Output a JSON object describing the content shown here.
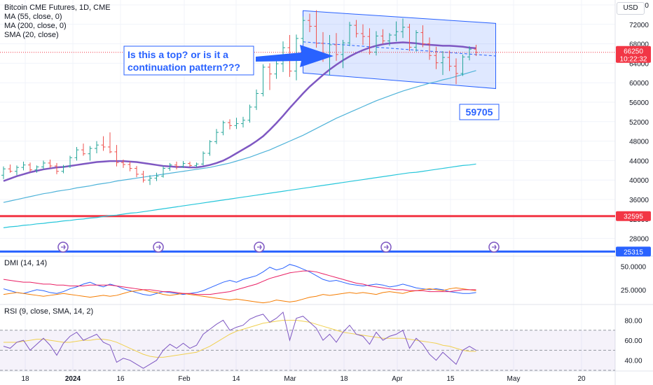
{
  "header": {
    "title": "Bitcoin CME Futures, 1D, CME",
    "currency": "USD",
    "indicators": [
      "MA (55, close, 0)",
      "MA (200, close, 0)",
      "SMA (20, close)"
    ]
  },
  "panes": {
    "dmi_label": "DMI (14, 14)",
    "rsi_label": "RSI (9, close, SMA, 14, 2)"
  },
  "annotations": {
    "callout": [
      "Is this a top? or is it a",
      "continuation pattern???"
    ],
    "low_box": "59705"
  },
  "price_badges": {
    "last": "66250",
    "countdown": "10:22:32",
    "level_red": "32595",
    "level_blue": "25315"
  },
  "chart_data": [
    {
      "type": "line",
      "title": "Bitcoin CME Futures, 1D, CME",
      "x_ticks": [
        "18",
        "2024",
        "16",
        "Feb",
        "14",
        "Mar",
        "18",
        "Apr",
        "15",
        "May",
        "20"
      ],
      "y_ticks": [
        76000,
        72000,
        68000,
        64000,
        60000,
        56000,
        52000,
        48000,
        44000,
        40000,
        36000,
        32000,
        28000
      ],
      "ylim": [
        24500,
        77000
      ],
      "horizontal_levels": [
        {
          "value": 32595,
          "color": "#f23645"
        },
        {
          "value": 25315,
          "color": "#2962ff"
        }
      ],
      "last_price": 66250,
      "annotated_low": 59705,
      "candles": [
        [
          41000,
          42800,
          40200,
          42300
        ],
        [
          42300,
          43200,
          41500,
          41800
        ],
        [
          41800,
          43000,
          41000,
          42600
        ],
        [
          42600,
          43800,
          42000,
          43100
        ],
        [
          43100,
          43600,
          41700,
          42100
        ],
        [
          42100,
          43000,
          41500,
          42700
        ],
        [
          42700,
          44000,
          42200,
          43500
        ],
        [
          43500,
          44200,
          42500,
          42900
        ],
        [
          42900,
          43500,
          41200,
          41800
        ],
        [
          41800,
          43100,
          41400,
          42800
        ],
        [
          42800,
          45000,
          42500,
          44600
        ],
        [
          44600,
          46800,
          44000,
          46200
        ],
        [
          46200,
          47500,
          45000,
          45400
        ],
        [
          45400,
          47000,
          44000,
          46500
        ],
        [
          46500,
          48000,
          45500,
          47200
        ],
        [
          47200,
          49000,
          46000,
          46800
        ],
        [
          46800,
          49800,
          45500,
          45800
        ],
        [
          45800,
          47200,
          42800,
          43600
        ],
        [
          43600,
          44200,
          42500,
          43200
        ],
        [
          43200,
          43800,
          41800,
          42400
        ],
        [
          42400,
          42900,
          40600,
          41200
        ],
        [
          41200,
          41900,
          39500,
          40000
        ],
        [
          40000,
          41000,
          39000,
          40400
        ],
        [
          40400,
          41500,
          39800,
          40800
        ],
        [
          40800,
          42900,
          40500,
          42400
        ],
        [
          42400,
          43500,
          41900,
          43100
        ],
        [
          43100,
          43800,
          42200,
          42800
        ],
        [
          42800,
          43900,
          42500,
          43400
        ],
        [
          43400,
          43800,
          42700,
          43000
        ],
        [
          43000,
          43600,
          42600,
          43300
        ],
        [
          43300,
          45900,
          43000,
          45500
        ],
        [
          45500,
          48200,
          45000,
          47900
        ],
        [
          47900,
          50500,
          47400,
          49800
        ],
        [
          49800,
          52200,
          49200,
          51800
        ],
        [
          51800,
          52500,
          50400,
          51200
        ],
        [
          51200,
          52800,
          50500,
          51600
        ],
        [
          51600,
          53000,
          50800,
          52300
        ],
        [
          52300,
          55500,
          51800,
          55000
        ],
        [
          55000,
          58600,
          54400,
          57800
        ],
        [
          57800,
          63800,
          57200,
          63200
        ],
        [
          63200,
          64000,
          58500,
          61800
        ],
        [
          61800,
          64500,
          60800,
          63900
        ],
        [
          63900,
          68500,
          62200,
          67200
        ],
        [
          67200,
          69800,
          61200,
          62400
        ],
        [
          62400,
          69900,
          60500,
          69100
        ],
        [
          69100,
          73600,
          68000,
          72800
        ],
        [
          72800,
          74200,
          70400,
          71600
        ],
        [
          71600,
          74900,
          67200,
          68100
        ],
        [
          68100,
          70400,
          64300,
          65400
        ],
        [
          65400,
          69800,
          61500,
          67800
        ],
        [
          67800,
          70200,
          64500,
          65800
        ],
        [
          65800,
          68800,
          63000,
          68200
        ],
        [
          68200,
          72500,
          67500,
          71800
        ],
        [
          71800,
          72900,
          69300,
          70100
        ],
        [
          70100,
          72000,
          67800,
          69500
        ],
        [
          69500,
          71200,
          65800,
          66300
        ],
        [
          66300,
          70600,
          65600,
          69600
        ],
        [
          69600,
          71000,
          68000,
          68600
        ],
        [
          68600,
          70200,
          67600,
          69800
        ],
        [
          69800,
          72600,
          68500,
          70500
        ],
        [
          70500,
          73200,
          69200,
          71400
        ],
        [
          71400,
          72100,
          66500,
          67300
        ],
        [
          67300,
          70800,
          66400,
          70300
        ],
        [
          70300,
          71800,
          67300,
          68000
        ],
        [
          68000,
          69300,
          64700,
          65600
        ],
        [
          65600,
          67400,
          62800,
          64100
        ],
        [
          64100,
          66500,
          61600,
          65200
        ],
        [
          65200,
          66600,
          62400,
          63400
        ],
        [
          63400,
          65000,
          59705,
          61900
        ],
        [
          61900,
          65800,
          61400,
          65300
        ],
        [
          65300,
          67500,
          64600,
          66900
        ],
        [
          66900,
          67800,
          65500,
          66250
        ]
      ],
      "series": [
        {
          "name": "SMA (20, close)",
          "color": "#7e57c2",
          "values": [
            39800,
            40300,
            40800,
            41200,
            41600,
            41900,
            42200,
            42400,
            42600,
            42700,
            42900,
            43100,
            43300,
            43500,
            43700,
            43800,
            43900,
            43900,
            43900,
            43800,
            43700,
            43500,
            43300,
            43100,
            42900,
            42800,
            42700,
            42700,
            42600,
            42600,
            42800,
            43100,
            43500,
            44000,
            44700,
            45500,
            46300,
            47100,
            48000,
            49000,
            50300,
            51700,
            53200,
            54800,
            56300,
            57800,
            59200,
            60400,
            61600,
            62700,
            63700,
            64600,
            65400,
            66100,
            66700,
            67200,
            67600,
            67900,
            68100,
            68200,
            68300,
            68200,
            68100,
            67900,
            67800,
            67700,
            67600,
            67600,
            67500,
            67400,
            67200,
            67100
          ]
        },
        {
          "name": "MA (55, close, 0)",
          "color": "#4fb3d9",
          "values": [
            35400,
            35700,
            36000,
            36300,
            36600,
            36900,
            37200,
            37400,
            37700,
            37900,
            38100,
            38400,
            38600,
            38800,
            39100,
            39300,
            39500,
            39800,
            40000,
            40200,
            40400,
            40600,
            40800,
            41000,
            41200,
            41400,
            41600,
            41800,
            42000,
            42200,
            42400,
            42600,
            42900,
            43200,
            43500,
            43900,
            44300,
            44700,
            45200,
            45700,
            46200,
            46800,
            47400,
            48000,
            48600,
            49200,
            49900,
            50600,
            51300,
            52000,
            52700,
            53300,
            53900,
            54500,
            55100,
            55700,
            56300,
            56800,
            57300,
            57800,
            58300,
            58700,
            59100,
            59500,
            59900,
            60200,
            60600,
            60900,
            61300,
            61700,
            62100,
            62500
          ]
        },
        {
          "name": "MA (200, close, 0)",
          "color": "#26c6da",
          "values": [
            30200,
            30400,
            30500,
            30700,
            30800,
            31000,
            31100,
            31300,
            31400,
            31600,
            31700,
            31900,
            32000,
            32200,
            32300,
            32500,
            32700,
            32800,
            33000,
            33200,
            33300,
            33500,
            33700,
            33900,
            34100,
            34300,
            34500,
            34700,
            34900,
            35100,
            35300,
            35500,
            35700,
            35900,
            36100,
            36300,
            36500,
            36700,
            36900,
            37100,
            37300,
            37500,
            37700,
            37900,
            38100,
            38300,
            38500,
            38700,
            38900,
            39100,
            39300,
            39500,
            39700,
            39900,
            40100,
            40300,
            40500,
            40700,
            40900,
            41100,
            41300,
            41500,
            41600,
            41800,
            42000,
            42200,
            42400,
            42600,
            42800,
            43000,
            43100,
            43300
          ]
        }
      ],
      "channel": {
        "start_index": 45,
        "end_index": 71,
        "upper": [
          74800,
          72200
        ],
        "lower": [
          62000,
          58800
        ],
        "color": "#2962ff"
      }
    },
    {
      "type": "line",
      "title": "DMI (14, 14)",
      "y_ticks": [
        50,
        25
      ],
      "ylim": [
        10,
        60
      ],
      "series": [
        {
          "name": "+DI",
          "color": "#2962ff",
          "values": [
            26,
            24,
            22,
            21,
            23,
            25,
            24,
            22,
            21,
            23,
            26,
            28,
            31,
            33,
            30,
            28,
            31,
            29,
            26,
            24,
            22,
            20,
            19,
            21,
            23,
            22,
            21,
            20,
            21,
            22,
            24,
            27,
            30,
            33,
            35,
            33,
            36,
            38,
            40,
            44,
            49,
            46,
            48,
            52,
            50,
            47,
            44,
            40,
            36,
            34,
            35,
            33,
            31,
            30,
            29,
            30,
            31,
            30,
            28,
            29,
            31,
            29,
            27,
            26,
            25,
            26,
            25,
            23,
            22,
            21,
            21,
            22
          ]
        },
        {
          "name": "-DI",
          "color": "#f57c00",
          "values": [
            20,
            21,
            22,
            21,
            20,
            19,
            18,
            19,
            20,
            21,
            20,
            19,
            18,
            17,
            18,
            19,
            18,
            19,
            21,
            23,
            24,
            25,
            23,
            22,
            20,
            19,
            20,
            21,
            20,
            19,
            18,
            17,
            16,
            15,
            14,
            15,
            14,
            13,
            12,
            11,
            12,
            14,
            13,
            12,
            13,
            15,
            17,
            18,
            20,
            19,
            20,
            21,
            22,
            21,
            22,
            21,
            20,
            22,
            23,
            22,
            21,
            23,
            24,
            25,
            26,
            25,
            24,
            26,
            27,
            26,
            25,
            24
          ]
        },
        {
          "name": "ADX",
          "color": "#e91e63",
          "values": [
            36,
            35,
            34,
            33,
            33,
            32,
            31,
            31,
            30,
            30,
            29,
            29,
            29,
            30,
            30,
            30,
            30,
            29,
            28,
            27,
            26,
            25,
            25,
            24,
            23,
            23,
            22,
            21,
            21,
            20,
            20,
            20,
            21,
            22,
            23,
            25,
            27,
            29,
            31,
            34,
            37,
            39,
            41,
            43,
            44,
            45,
            45,
            44,
            42,
            40,
            38,
            36,
            34,
            32,
            31,
            29,
            28,
            27,
            26,
            25,
            25,
            24,
            24,
            24,
            23,
            23,
            23,
            23,
            24,
            25,
            25,
            25
          ]
        }
      ]
    },
    {
      "type": "line",
      "title": "RSI (9, close, SMA, 14, 2)",
      "y_ticks": [
        80,
        60,
        40
      ],
      "ylim": [
        30,
        95
      ],
      "bands": {
        "upper": 70,
        "middle": 50,
        "lower": 30
      },
      "series": [
        {
          "name": "RSI",
          "color": "#7e57c2",
          "values": [
            54,
            52,
            58,
            60,
            50,
            56,
            62,
            55,
            45,
            57,
            64,
            68,
            60,
            63,
            66,
            58,
            55,
            38,
            42,
            40,
            36,
            32,
            36,
            40,
            50,
            56,
            52,
            57,
            52,
            55,
            66,
            71,
            76,
            80,
            70,
            73,
            75,
            81,
            84,
            86,
            78,
            82,
            88,
            60,
            82,
            84,
            78,
            72,
            60,
            66,
            58,
            68,
            75,
            66,
            64,
            56,
            68,
            60,
            64,
            66,
            70,
            52,
            62,
            56,
            46,
            40,
            48,
            42,
            36,
            50,
            54,
            50
          ]
        },
        {
          "name": "RSI SMA",
          "color": "#f0d050",
          "values": [
            58,
            58,
            58,
            59,
            60,
            61,
            61,
            60,
            59,
            58,
            58,
            59,
            60,
            60,
            61,
            61,
            60,
            58,
            55,
            52,
            49,
            46,
            44,
            43,
            43,
            44,
            45,
            46,
            47,
            48,
            51,
            54,
            58,
            62,
            66,
            69,
            71,
            73,
            75,
            77,
            78,
            79,
            80,
            80,
            80,
            79,
            78,
            76,
            74,
            72,
            70,
            68,
            67,
            66,
            65,
            64,
            63,
            62,
            62,
            62,
            62,
            61,
            60,
            59,
            58,
            57,
            55,
            54,
            52,
            50,
            49,
            49
          ]
        }
      ]
    }
  ],
  "x_axis": {
    "ticks": [
      "18",
      "2024",
      "16",
      "Feb",
      "14",
      "Mar",
      "18",
      "Apr",
      "15",
      "May",
      "20"
    ]
  }
}
